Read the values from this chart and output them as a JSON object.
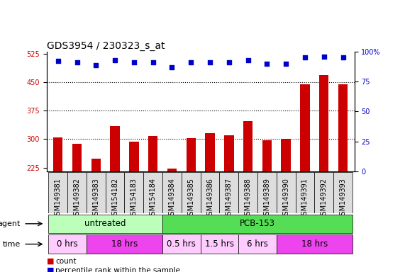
{
  "title": "GDS3954 / 230323_s_at",
  "samples": [
    "GSM149381",
    "GSM149382",
    "GSM149383",
    "GSM154182",
    "GSM154183",
    "GSM154184",
    "GSM149384",
    "GSM149385",
    "GSM149386",
    "GSM149387",
    "GSM149388",
    "GSM149389",
    "GSM149390",
    "GSM149391",
    "GSM149392",
    "GSM149393"
  ],
  "bar_values": [
    305,
    287,
    248,
    335,
    293,
    308,
    222,
    303,
    315,
    310,
    348,
    296,
    300,
    445,
    468,
    445
  ],
  "dot_values": [
    92,
    91,
    89,
    93,
    91,
    91,
    87,
    91,
    91,
    91,
    93,
    90,
    90,
    95,
    96,
    95
  ],
  "bar_color": "#cc0000",
  "dot_color": "#0000cc",
  "ylim_left": [
    215,
    530
  ],
  "ylim_right": [
    0,
    100
  ],
  "yticks_left": [
    225,
    300,
    375,
    450,
    525
  ],
  "yticks_right": [
    0,
    25,
    50,
    75,
    100
  ],
  "background_color": "#ffffff",
  "plot_bg_color": "#ffffff",
  "agent_row": {
    "label": "agent",
    "groups": [
      {
        "text": "untreated",
        "start": 0,
        "end": 6,
        "color": "#bbffbb"
      },
      {
        "text": "PCB-153",
        "start": 6,
        "end": 16,
        "color": "#55dd55"
      }
    ]
  },
  "time_row": {
    "label": "time",
    "groups": [
      {
        "text": "0 hrs",
        "start": 0,
        "end": 2,
        "color": "#ffccff"
      },
      {
        "text": "18 hrs",
        "start": 2,
        "end": 6,
        "color": "#ee44ee"
      },
      {
        "text": "0.5 hrs",
        "start": 6,
        "end": 8,
        "color": "#ffccff"
      },
      {
        "text": "1.5 hrs",
        "start": 8,
        "end": 10,
        "color": "#ffccff"
      },
      {
        "text": "6 hrs",
        "start": 10,
        "end": 12,
        "color": "#ffccff"
      },
      {
        "text": "18 hrs",
        "start": 12,
        "end": 16,
        "color": "#ee44ee"
      }
    ]
  },
  "legend_count_color": "#cc0000",
  "legend_dot_color": "#0000cc",
  "title_fontsize": 10,
  "tick_fontsize": 7,
  "label_fontsize": 8.5,
  "bar_width": 0.5
}
